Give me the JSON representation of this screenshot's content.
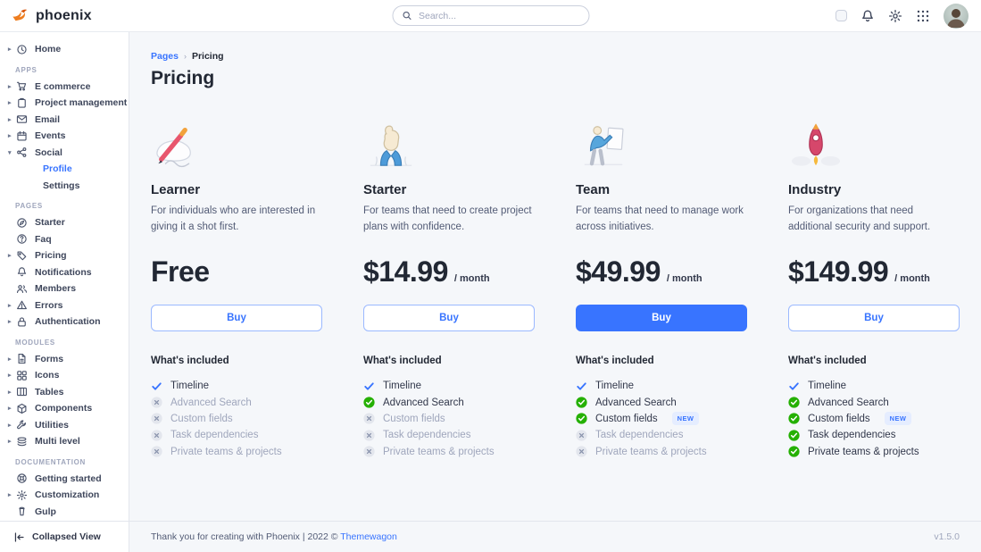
{
  "navbar": {
    "brand": "phoenix",
    "search_placeholder": "Search..."
  },
  "sidebar": {
    "collapsed_view_label": "Collapsed View",
    "sections": [
      {
        "label": "",
        "items": [
          {
            "label": "Home",
            "icon": "clock",
            "caret": true
          }
        ]
      },
      {
        "label": "APPS",
        "items": [
          {
            "label": "E commerce",
            "icon": "cart",
            "caret": true
          },
          {
            "label": "Project management",
            "icon": "clipboard",
            "caret": true
          },
          {
            "label": "Email",
            "icon": "envelope",
            "caret": true
          },
          {
            "label": "Events",
            "icon": "calendar",
            "caret": true
          },
          {
            "label": "Social",
            "icon": "share",
            "caret": "down"
          },
          {
            "label": "Profile",
            "child": true,
            "active": true
          },
          {
            "label": "Settings",
            "child": true
          }
        ]
      },
      {
        "label": "PAGES",
        "items": [
          {
            "label": "Starter",
            "icon": "compass"
          },
          {
            "label": "Faq",
            "icon": "question"
          },
          {
            "label": "Pricing",
            "icon": "tag",
            "caret": true
          },
          {
            "label": "Notifications",
            "icon": "bell"
          },
          {
            "label": "Members",
            "icon": "users"
          },
          {
            "label": "Errors",
            "icon": "warning",
            "caret": true
          },
          {
            "label": "Authentication",
            "icon": "lock",
            "caret": true
          }
        ]
      },
      {
        "label": "MODULES",
        "items": [
          {
            "label": "Forms",
            "icon": "file",
            "caret": true
          },
          {
            "label": "Icons",
            "icon": "grid-squares",
            "caret": true
          },
          {
            "label": "Tables",
            "icon": "table",
            "caret": true
          },
          {
            "label": "Components",
            "icon": "package",
            "caret": true
          },
          {
            "label": "Utilities",
            "icon": "wrench",
            "caret": true
          },
          {
            "label": "Multi level",
            "icon": "layers",
            "caret": true
          }
        ]
      },
      {
        "label": "DOCUMENTATION",
        "items": [
          {
            "label": "Getting started",
            "icon": "lifering"
          },
          {
            "label": "Customization",
            "icon": "gear",
            "caret": true
          },
          {
            "label": "Gulp",
            "icon": "gulp"
          }
        ]
      }
    ]
  },
  "breadcrumb": {
    "parent": "Pages",
    "separator": "›",
    "current": "Pricing"
  },
  "page_title": "Pricing",
  "plans": [
    {
      "name": "Learner",
      "illustration": "pencil",
      "description": "For individuals who are interested in giving it a shot first.",
      "price": "Free",
      "period": "",
      "buy_label": "Buy",
      "buy_variant": "outline",
      "included_title": "What's included",
      "features": [
        {
          "label": "Timeline",
          "state": "included-basic"
        },
        {
          "label": "Advanced Search",
          "state": "excluded"
        },
        {
          "label": "Custom fields",
          "state": "excluded"
        },
        {
          "label": "Task dependencies",
          "state": "excluded"
        },
        {
          "label": "Private teams & projects",
          "state": "excluded"
        }
      ]
    },
    {
      "name": "Starter",
      "illustration": "thumbsup",
      "description": "For teams that need to create project plans with confidence.",
      "price": "$14.99",
      "period": "/ month",
      "buy_label": "Buy",
      "buy_variant": "outline",
      "included_title": "What's included",
      "features": [
        {
          "label": "Timeline",
          "state": "included-basic"
        },
        {
          "label": "Advanced Search",
          "state": "included"
        },
        {
          "label": "Custom fields",
          "state": "excluded"
        },
        {
          "label": "Task dependencies",
          "state": "excluded"
        },
        {
          "label": "Private teams & projects",
          "state": "excluded"
        }
      ]
    },
    {
      "name": "Team",
      "illustration": "presenter",
      "description": "For teams that need to manage work across initiatives.",
      "price": "$49.99",
      "period": "/ month",
      "buy_label": "Buy",
      "buy_variant": "filled",
      "included_title": "What's included",
      "features": [
        {
          "label": "Timeline",
          "state": "included-basic"
        },
        {
          "label": "Advanced Search",
          "state": "included"
        },
        {
          "label": "Custom fields",
          "state": "included",
          "badge": "NEW"
        },
        {
          "label": "Task dependencies",
          "state": "excluded"
        },
        {
          "label": "Private teams & projects",
          "state": "excluded"
        }
      ]
    },
    {
      "name": "Industry",
      "illustration": "rocket",
      "description": "For organizations that need additional security and support.",
      "price": "$149.99",
      "period": "/ month",
      "buy_label": "Buy",
      "buy_variant": "outline",
      "included_title": "What's included",
      "features": [
        {
          "label": "Timeline",
          "state": "included-basic"
        },
        {
          "label": "Advanced Search",
          "state": "included"
        },
        {
          "label": "Custom fields",
          "state": "included",
          "badge": "NEW"
        },
        {
          "label": "Task dependencies",
          "state": "included"
        },
        {
          "label": "Private teams & projects",
          "state": "included"
        }
      ]
    }
  ],
  "footer": {
    "left_text": "Thank you for creating with Phoenix | 2022 ©",
    "link_label": "Themewagon",
    "version": "v1.5.0"
  },
  "colors": {
    "primary": "#3874ff",
    "success": "#25b003",
    "muted": "#9fa6bc",
    "bg": "#f5f7fa"
  }
}
